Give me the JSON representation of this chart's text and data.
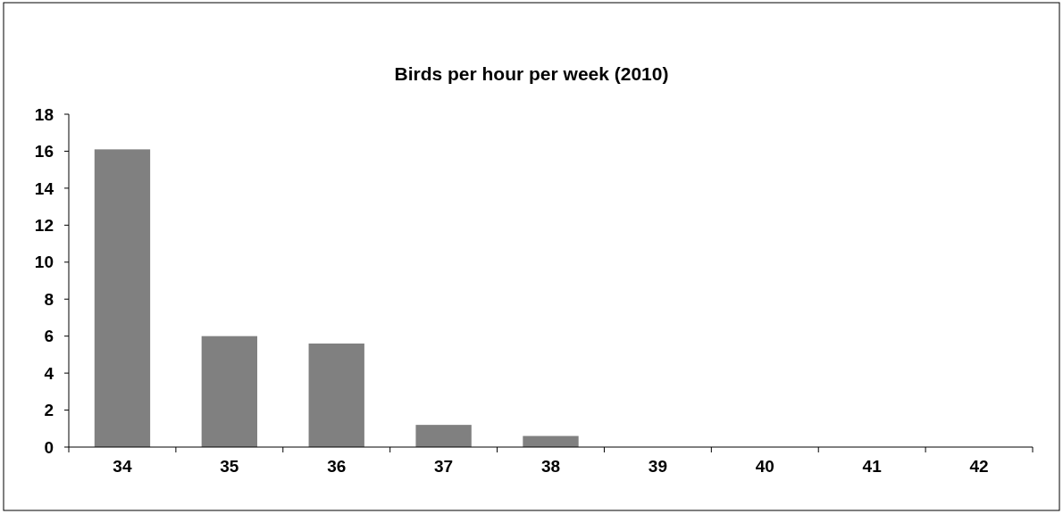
{
  "chart_data": {
    "type": "bar",
    "title": "Birds per hour per week (2010)",
    "categories": [
      "34",
      "35",
      "36",
      "37",
      "38",
      "39",
      "40",
      "41",
      "42"
    ],
    "values": [
      16.1,
      6.0,
      5.6,
      1.2,
      0.6,
      0,
      0,
      0,
      0
    ],
    "color": "#808080",
    "ylim": [
      0,
      18
    ],
    "yticks": [
      0,
      2,
      4,
      6,
      8,
      10,
      12,
      14,
      16,
      18
    ],
    "grid": false
  }
}
